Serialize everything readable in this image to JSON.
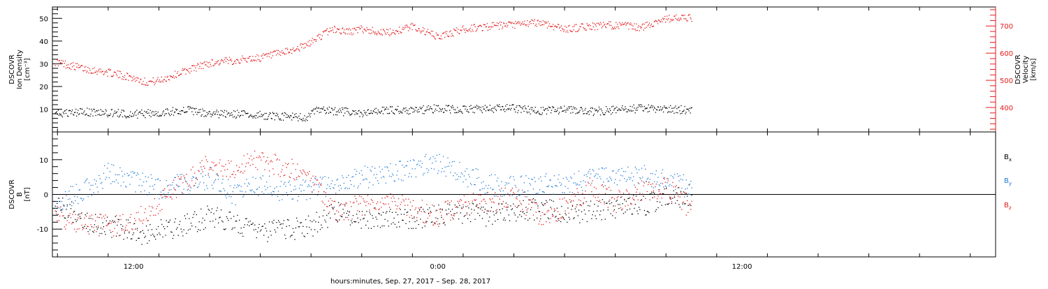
{
  "colors": {
    "axis": "#000000",
    "red": "#e31a1c",
    "blue": "#1f78d4",
    "black": "#000000",
    "background": "#ffffff"
  },
  "xaxis": {
    "label": "hours:minutes, Sep. 27, 2017 – Sep. 28, 2017",
    "ticks": [
      "12:00",
      "0:00",
      "12:00"
    ],
    "tick_hours": [
      12,
      24,
      36
    ],
    "range_hours": [
      8.8,
      46.0
    ],
    "data_end_hours": 34.0
  },
  "chart_data": [
    {
      "id": "top-panel",
      "type": "scatter",
      "left_axis": {
        "label_lines": [
          "DSCOVR",
          "Ion Density",
          "[cm⁻³]"
        ],
        "ylim": [
          0,
          55
        ],
        "ticks": [
          10,
          20,
          30,
          40,
          50
        ]
      },
      "right_axis": {
        "label_lines": [
          "DSCOVR",
          "Velocity",
          "[km/s]"
        ],
        "ylim": [
          310,
          770
        ],
        "ticks": [
          400,
          500,
          600,
          700
        ]
      },
      "series": [
        {
          "color": "red",
          "axis": "right",
          "x": [
            8.9,
            10.0,
            11.0,
            12.0,
            12.5,
            13.0,
            13.7,
            14.3,
            15.0,
            16.0,
            17.0,
            18.0,
            18.8,
            19.2,
            19.8,
            20.5,
            21.0,
            22.0,
            23.0,
            24.0,
            25.0,
            26.0,
            27.0,
            28.0,
            29.0,
            30.0,
            31.0,
            32.0,
            32.8,
            33.2,
            34.0
          ],
          "y": [
            570,
            545,
            530,
            510,
            495,
            500,
            525,
            545,
            565,
            575,
            585,
            605,
            630,
            655,
            690,
            680,
            690,
            675,
            700,
            660,
            690,
            700,
            705,
            715,
            690,
            700,
            705,
            695,
            725,
            730,
            730
          ]
        },
        {
          "color": "black",
          "axis": "left",
          "x": [
            8.9,
            10.0,
            11.0,
            12.0,
            13.0,
            14.0,
            15.0,
            16.0,
            17.0,
            18.0,
            18.8,
            19.2,
            20.0,
            21.0,
            22.0,
            23.0,
            24.0,
            25.0,
            26.0,
            27.0,
            28.0,
            29.0,
            30.0,
            31.0,
            32.0,
            33.0,
            34.0
          ],
          "y": [
            8,
            9,
            8.5,
            8,
            8.5,
            10,
            8,
            8,
            7.5,
            7,
            6.5,
            9.5,
            9.5,
            8,
            10,
            9.5,
            10.5,
            10,
            10.5,
            10.5,
            9.5,
            10,
            9,
            10,
            10.5,
            10,
            10
          ]
        }
      ]
    },
    {
      "id": "bottom-panel",
      "type": "scatter",
      "left_axis": {
        "label_lines": [
          "DSCOVR",
          "B",
          "[nT]"
        ],
        "ylim": [
          -18,
          18
        ],
        "ticks": [
          -10,
          0,
          10
        ]
      },
      "zero_line": true,
      "legend": [
        "Bx",
        "By",
        "Bz"
      ],
      "legend_position": "right",
      "series": [
        {
          "name": "Bx",
          "color": "black",
          "x": [
            8.9,
            10.0,
            11.0,
            12.0,
            12.5,
            13.0,
            14.0,
            15.0,
            16.0,
            17.0,
            18.0,
            19.0,
            20.0,
            21.0,
            22.0,
            23.0,
            24.0,
            25.0,
            26.0,
            27.0,
            28.0,
            29.0,
            30.0,
            31.0,
            32.0,
            33.0,
            34.0
          ],
          "y": [
            -2,
            -7,
            -9,
            -10,
            -12,
            -10,
            -9,
            -6,
            -8,
            -11,
            -10,
            -9,
            -5,
            -7,
            -6,
            -7,
            -6,
            -5,
            -6,
            -5,
            -4,
            -5,
            -5,
            -4,
            -3,
            -1,
            0
          ]
        },
        {
          "name": "By",
          "color": "blue",
          "x": [
            8.9,
            10.0,
            11.0,
            12.0,
            13.0,
            14.0,
            15.0,
            16.0,
            17.0,
            18.0,
            19.0,
            20.0,
            21.0,
            22.0,
            23.0,
            24.0,
            25.0,
            26.0,
            27.0,
            28.0,
            29.0,
            30.0,
            31.0,
            32.0,
            33.0,
            34.0
          ],
          "y": [
            -2,
            1,
            6,
            4,
            2,
            3,
            5,
            0,
            3,
            1,
            2,
            3,
            5,
            6,
            8,
            9,
            6,
            3,
            2,
            3,
            3,
            5,
            5,
            6,
            4,
            2
          ]
        },
        {
          "name": "Bz",
          "color": "red",
          "x": [
            8.9,
            10.0,
            11.0,
            12.0,
            13.0,
            14.0,
            15.0,
            16.0,
            17.0,
            18.0,
            19.0,
            20.0,
            21.0,
            22.0,
            23.0,
            24.0,
            25.0,
            26.0,
            27.0,
            28.0,
            29.0,
            30.0,
            31.0,
            32.0,
            33.0,
            34.0
          ],
          "y": [
            -6,
            -8,
            -9,
            -8,
            -2,
            4,
            9,
            8,
            10,
            8,
            4,
            -5,
            -3,
            -2,
            -4,
            -6,
            -3,
            -2,
            0,
            -6,
            -4,
            2,
            -2,
            1,
            2,
            -4
          ]
        }
      ]
    }
  ]
}
